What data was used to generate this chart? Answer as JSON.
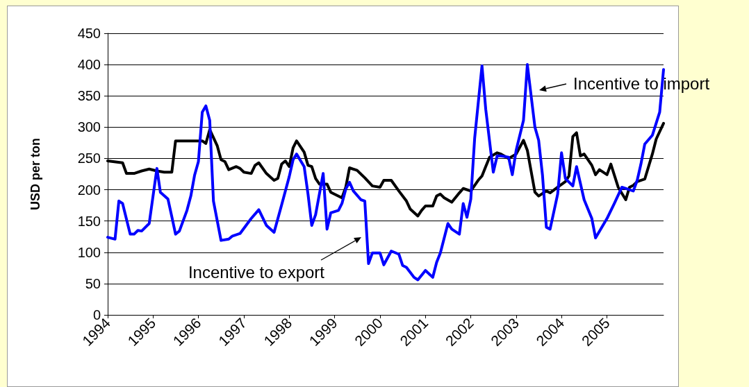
{
  "chart_data": {
    "type": "line",
    "ylabel": "USD per ton",
    "xlim": [
      "1994-01",
      "2006-04"
    ],
    "xticks": [
      "1994",
      "1995",
      "1996",
      "1997",
      "1998",
      "1999",
      "2000",
      "2001",
      "2002",
      "2003",
      "2004",
      "2005"
    ],
    "ylim": [
      0,
      450
    ],
    "yticks": [
      0,
      50,
      100,
      150,
      200,
      250,
      300,
      350,
      400,
      450
    ],
    "grid": "y",
    "marker": "none",
    "line_style": "solid",
    "series": [
      {
        "color": "#000000",
        "x": [
          "1994-01",
          "1994-05",
          "1994-06",
          "1994-08",
          "1994-10",
          "1994-12",
          "1995-02",
          "1995-04",
          "1995-06",
          "1995-07",
          "1996-02",
          "1996-03",
          "1996-04",
          "1996-06",
          "1996-07",
          "1996-08",
          "1996-09",
          "1996-11",
          "1996-12",
          "1997-01",
          "1997-03",
          "1997-04",
          "1997-05",
          "1997-07",
          "1997-09",
          "1997-10",
          "1997-11",
          "1997-12",
          "1998-01",
          "1998-02",
          "1998-03",
          "1998-05",
          "1998-06",
          "1998-07",
          "1998-08",
          "1998-09",
          "1998-11",
          "1998-12",
          "1999-03",
          "1999-04",
          "1999-05",
          "1999-07",
          "1999-09",
          "1999-11",
          "2000-01",
          "2000-02",
          "2000-04",
          "2000-06",
          "2000-08",
          "2000-09",
          "2000-11",
          "2000-12",
          "2001-01",
          "2001-03",
          "2001-04",
          "2001-05",
          "2001-06",
          "2001-08",
          "2001-10",
          "2001-11",
          "2002-01",
          "2002-03",
          "2002-04",
          "2002-05",
          "2002-06",
          "2002-08",
          "2002-09",
          "2002-11",
          "2003-01",
          "2003-03",
          "2003-04",
          "2003-06",
          "2003-07",
          "2003-09",
          "2003-10",
          "2003-12",
          "2004-02",
          "2004-03",
          "2004-04",
          "2004-05",
          "2004-06",
          "2004-07",
          "2004-09",
          "2004-10",
          "2004-11",
          "2005-01",
          "2005-02",
          "2005-04",
          "2005-06",
          "2005-07",
          "2005-08",
          "2005-09",
          "2005-11",
          "2006-01",
          "2006-02",
          "2006-04"
        ],
        "values": [
          246,
          243,
          226,
          226,
          230,
          233,
          230,
          228,
          228,
          278,
          278,
          274,
          296,
          270,
          248,
          245,
          232,
          237,
          234,
          228,
          226,
          239,
          243,
          226,
          215,
          218,
          241,
          246,
          237,
          267,
          278,
          260,
          239,
          237,
          218,
          209,
          209,
          196,
          187,
          204,
          235,
          231,
          219,
          206,
          204,
          215,
          215,
          198,
          182,
          169,
          158,
          167,
          174,
          174,
          190,
          193,
          187,
          180,
          195,
          202,
          198,
          215,
          222,
          237,
          252,
          259,
          257,
          250,
          257,
          279,
          263,
          196,
          190,
          198,
          195,
          204,
          213,
          222,
          285,
          291,
          254,
          257,
          239,
          224,
          232,
          224,
          241,
          204,
          184,
          204,
          207,
          213,
          217,
          257,
          281,
          306
        ]
      },
      {
        "color": "#0000ff",
        "x": [
          "1994-01",
          "1994-03",
          "1994-04",
          "1994-05",
          "1994-07",
          "1994-08",
          "1994-09",
          "1994-10",
          "1994-12",
          "1995-02",
          "1995-03",
          "1995-05",
          "1995-06",
          "1995-07",
          "1995-08",
          "1995-10",
          "1995-11",
          "1995-12",
          "1996-01",
          "1996-02",
          "1996-03",
          "1996-04",
          "1996-05",
          "1996-07",
          "1996-09",
          "1996-10",
          "1996-12",
          "1997-03",
          "1997-05",
          "1997-07",
          "1997-09",
          "1997-11",
          "1998-01",
          "1998-02",
          "1998-03",
          "1998-05",
          "1998-06",
          "1998-07",
          "1998-08",
          "1998-10",
          "1998-11",
          "1998-12",
          "1999-02",
          "1999-03",
          "1999-04",
          "1999-05",
          "1999-06",
          "1999-08",
          "1999-09",
          "1999-10",
          "1999-11",
          "2000-01",
          "2000-02",
          "2000-04",
          "2000-06",
          "2000-07",
          "2000-08",
          "2000-10",
          "2000-11",
          "2001-01",
          "2001-03",
          "2001-04",
          "2001-05",
          "2001-07",
          "2001-08",
          "2001-10",
          "2001-11",
          "2001-12",
          "2002-01",
          "2002-02",
          "2002-04",
          "2002-05",
          "2002-07",
          "2002-08",
          "2002-09",
          "2002-11",
          "2002-12",
          "2003-01",
          "2003-03",
          "2003-04",
          "2003-06",
          "2003-07",
          "2003-08",
          "2003-09",
          "2003-10",
          "2003-12",
          "2004-01",
          "2004-02",
          "2004-04",
          "2004-05",
          "2004-07",
          "2004-09",
          "2004-10",
          "2005-01",
          "2005-03",
          "2005-05",
          "2005-08",
          "2005-09",
          "2005-10",
          "2005-11",
          "2006-01",
          "2006-03",
          "2006-04"
        ],
        "values": [
          124,
          121,
          182,
          178,
          129,
          129,
          135,
          134,
          146,
          234,
          196,
          185,
          157,
          129,
          134,
          167,
          190,
          223,
          245,
          324,
          334,
          311,
          182,
          119,
          121,
          126,
          130,
          154,
          168,
          143,
          132,
          176,
          221,
          248,
          257,
          237,
          193,
          143,
          160,
          226,
          137,
          163,
          167,
          178,
          201,
          212,
          198,
          184,
          182,
          82,
          99,
          99,
          80,
          102,
          97,
          79,
          76,
          60,
          56,
          71,
          60,
          84,
          99,
          146,
          137,
          129,
          178,
          156,
          185,
          282,
          398,
          329,
          228,
          254,
          254,
          252,
          224,
          263,
          311,
          400,
          300,
          279,
          223,
          140,
          137,
          193,
          259,
          218,
          206,
          237,
          184,
          154,
          123,
          154,
          178,
          204,
          198,
          215,
          241,
          273,
          287,
          324,
          392
        ]
      }
    ],
    "annotations": [
      "Incentive to import",
      "Incentive to export"
    ]
  }
}
